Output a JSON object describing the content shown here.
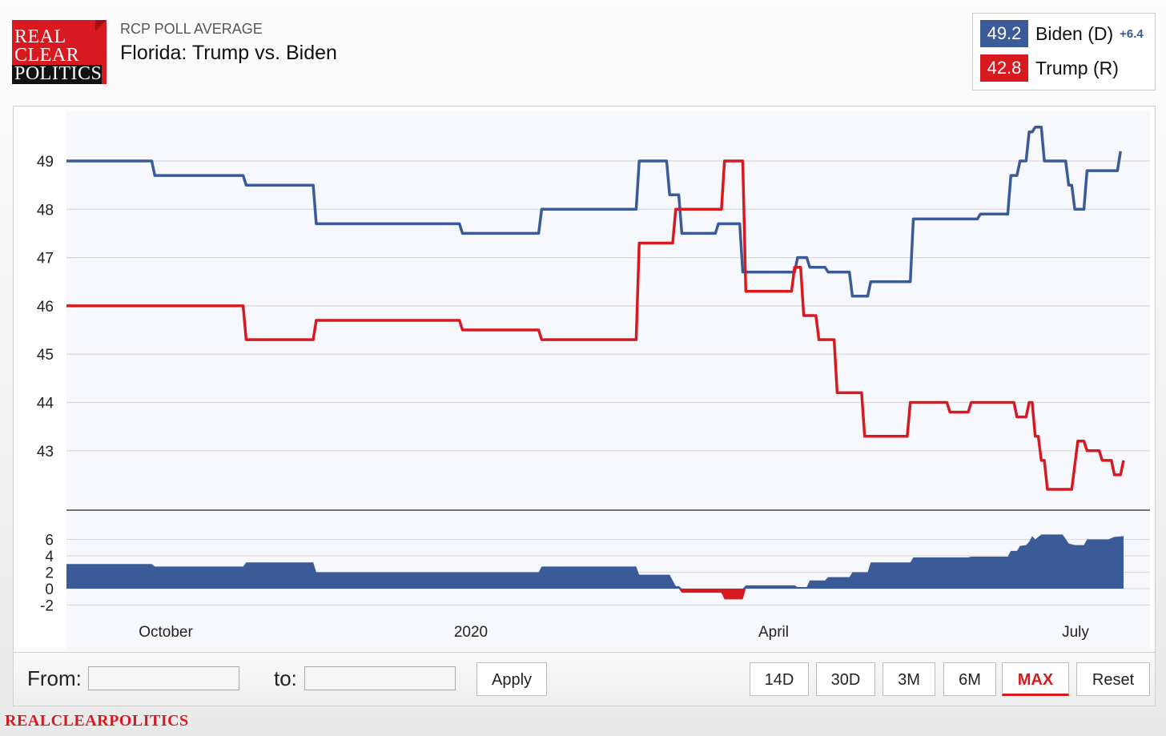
{
  "logo": {
    "line1": "REAL",
    "line2": "CLEAR",
    "line3": "POLITICS"
  },
  "header": {
    "subtitle": "RCP POLL AVERAGE",
    "title": "Florida: Trump vs. Biden"
  },
  "legend": {
    "biden": {
      "value": "49.2",
      "name": "Biden (D)",
      "spread": "+6.4",
      "color": "#3a5a98"
    },
    "trump": {
      "value": "42.8",
      "name": "Trump (R)",
      "color": "#d71920"
    }
  },
  "controls": {
    "from_label": "From:",
    "from_value": "",
    "to_label": "to:",
    "to_value": "",
    "apply_label": "Apply",
    "ranges": [
      "14D",
      "30D",
      "3M",
      "6M",
      "MAX",
      "Reset"
    ],
    "active_range": "MAX"
  },
  "footer": {
    "brand": "REALCLEARPOLITICS"
  },
  "chart_data": [
    {
      "type": "line",
      "title": "",
      "x_labels": [
        "October",
        "2020",
        "April",
        "July"
      ],
      "y_ticks": [
        43,
        44,
        45,
        46,
        47,
        48,
        49
      ],
      "ylim": [
        41.8,
        50.1
      ],
      "grid": true,
      "series": [
        {
          "name": "Biden (D)",
          "color": "#3a5a98",
          "points": [
            [
              "2019-09-01",
              49.0
            ],
            [
              "2019-09-29",
              49.0
            ],
            [
              "2019-09-30",
              48.7
            ],
            [
              "2019-10-29",
              48.7
            ],
            [
              "2019-10-30",
              48.5
            ],
            [
              "2019-11-21",
              48.5
            ],
            [
              "2019-11-22",
              47.7
            ],
            [
              "2020-01-08",
              47.7
            ],
            [
              "2020-01-09",
              47.5
            ],
            [
              "2020-02-03",
              47.5
            ],
            [
              "2020-02-04",
              48.0
            ],
            [
              "2020-03-06",
              48.0
            ],
            [
              "2020-03-07",
              49.0
            ],
            [
              "2020-03-16",
              49.0
            ],
            [
              "2020-03-17",
              48.3
            ],
            [
              "2020-03-20",
              48.3
            ],
            [
              "2020-03-21",
              47.5
            ],
            [
              "2020-04-01",
              47.5
            ],
            [
              "2020-04-02",
              47.7
            ],
            [
              "2020-04-09",
              47.7
            ],
            [
              "2020-04-10",
              46.7
            ],
            [
              "2020-04-27",
              46.7
            ],
            [
              "2020-04-28",
              47.0
            ],
            [
              "2020-05-01",
              47.0
            ],
            [
              "2020-05-02",
              46.8
            ],
            [
              "2020-05-07",
              46.8
            ],
            [
              "2020-05-08",
              46.7
            ],
            [
              "2020-05-15",
              46.7
            ],
            [
              "2020-05-16",
              46.2
            ],
            [
              "2020-05-21",
              46.2
            ],
            [
              "2020-05-22",
              46.5
            ],
            [
              "2020-06-04",
              46.5
            ],
            [
              "2020-06-05",
              47.8
            ],
            [
              "2020-06-26",
              47.8
            ],
            [
              "2020-06-27",
              47.9
            ],
            [
              "2020-07-06",
              47.9
            ],
            [
              "2020-07-07",
              48.7
            ],
            [
              "2020-07-09",
              48.7
            ],
            [
              "2020-07-10",
              49.0
            ],
            [
              "2020-07-12",
              49.0
            ],
            [
              "2020-07-13",
              49.6
            ],
            [
              "2020-07-14",
              49.6
            ],
            [
              "2020-07-15",
              49.7
            ],
            [
              "2020-07-17",
              49.7
            ],
            [
              "2020-07-18",
              49.0
            ],
            [
              "2020-07-25",
              49.0
            ],
            [
              "2020-07-26",
              48.5
            ],
            [
              "2020-07-27",
              48.5
            ],
            [
              "2020-07-28",
              48.0
            ],
            [
              "2020-07-31",
              48.0
            ],
            [
              "2020-08-01",
              48.8
            ],
            [
              "2020-08-11",
              48.8
            ],
            [
              "2020-08-12",
              49.2
            ]
          ]
        },
        {
          "name": "Trump (R)",
          "color": "#d71920",
          "points": [
            [
              "2019-09-01",
              46.0
            ],
            [
              "2019-10-29",
              46.0
            ],
            [
              "2019-10-30",
              45.3
            ],
            [
              "2019-11-21",
              45.3
            ],
            [
              "2019-11-22",
              45.7
            ],
            [
              "2020-01-08",
              45.7
            ],
            [
              "2020-01-09",
              45.5
            ],
            [
              "2020-02-03",
              45.5
            ],
            [
              "2020-02-04",
              45.3
            ],
            [
              "2020-03-06",
              45.3
            ],
            [
              "2020-03-07",
              47.3
            ],
            [
              "2020-03-18",
              47.3
            ],
            [
              "2020-03-19",
              48.0
            ],
            [
              "2020-04-03",
              48.0
            ],
            [
              "2020-04-04",
              49.0
            ],
            [
              "2020-04-10",
              49.0
            ],
            [
              "2020-04-11",
              46.3
            ],
            [
              "2020-04-26",
              46.3
            ],
            [
              "2020-04-27",
              46.8
            ],
            [
              "2020-04-29",
              46.8
            ],
            [
              "2020-04-30",
              45.8
            ],
            [
              "2020-05-04",
              45.8
            ],
            [
              "2020-05-05",
              45.3
            ],
            [
              "2020-05-10",
              45.3
            ],
            [
              "2020-05-11",
              44.2
            ],
            [
              "2020-05-19",
              44.2
            ],
            [
              "2020-05-20",
              43.3
            ],
            [
              "2020-06-03",
              43.3
            ],
            [
              "2020-06-04",
              44.0
            ],
            [
              "2020-06-16",
              44.0
            ],
            [
              "2020-06-17",
              43.8
            ],
            [
              "2020-06-23",
              43.8
            ],
            [
              "2020-06-24",
              44.0
            ],
            [
              "2020-07-08",
              44.0
            ],
            [
              "2020-07-09",
              43.7
            ],
            [
              "2020-07-12",
              43.7
            ],
            [
              "2020-07-13",
              44.0
            ],
            [
              "2020-07-14",
              44.0
            ],
            [
              "2020-07-15",
              43.3
            ],
            [
              "2020-07-16",
              43.3
            ],
            [
              "2020-07-17",
              42.8
            ],
            [
              "2020-07-18",
              42.8
            ],
            [
              "2020-07-19",
              42.2
            ],
            [
              "2020-07-27",
              42.2
            ],
            [
              "2020-07-29",
              43.2
            ],
            [
              "2020-07-31",
              43.2
            ],
            [
              "2020-08-01",
              43.0
            ],
            [
              "2020-08-05",
              43.0
            ],
            [
              "2020-08-06",
              42.8
            ],
            [
              "2020-08-09",
              42.8
            ],
            [
              "2020-08-10",
              42.5
            ],
            [
              "2020-08-12",
              42.5
            ],
            [
              "2020-08-13",
              42.8
            ]
          ]
        }
      ]
    },
    {
      "type": "area",
      "title": "",
      "y_ticks": [
        -2,
        0,
        2,
        4,
        6
      ],
      "ylim": [
        -3,
        7
      ],
      "series": [
        {
          "name": "",
          "color": "#3a5a98",
          "negative_color": "#d71920",
          "points": [
            [
              "2019-09-01",
              3.0
            ],
            [
              "2019-09-29",
              3.0
            ],
            [
              "2019-09-30",
              2.7
            ],
            [
              "2019-10-29",
              2.7
            ],
            [
              "2019-10-30",
              3.2
            ],
            [
              "2019-11-21",
              3.2
            ],
            [
              "2019-11-22",
              2.0
            ],
            [
              "2020-02-03",
              2.0
            ],
            [
              "2020-02-04",
              2.7
            ],
            [
              "2020-03-06",
              2.7
            ],
            [
              "2020-03-07",
              1.7
            ],
            [
              "2020-03-17",
              1.7
            ],
            [
              "2020-03-19",
              0.3
            ],
            [
              "2020-03-20",
              0.3
            ],
            [
              "2020-03-21",
              -0.5
            ],
            [
              "2020-04-03",
              -0.5
            ],
            [
              "2020-04-04",
              -1.3
            ],
            [
              "2020-04-10",
              -1.3
            ],
            [
              "2020-04-11",
              0.4
            ],
            [
              "2020-04-27",
              0.4
            ],
            [
              "2020-04-28",
              0.2
            ],
            [
              "2020-05-01",
              0.2
            ],
            [
              "2020-05-02",
              1.0
            ],
            [
              "2020-05-07",
              1.0
            ],
            [
              "2020-05-08",
              1.4
            ],
            [
              "2020-05-15",
              1.4
            ],
            [
              "2020-05-16",
              2.0
            ],
            [
              "2020-05-21",
              2.0
            ],
            [
              "2020-05-22",
              3.2
            ],
            [
              "2020-06-04",
              3.2
            ],
            [
              "2020-06-05",
              3.8
            ],
            [
              "2020-06-23",
              3.8
            ],
            [
              "2020-06-24",
              3.9
            ],
            [
              "2020-07-06",
              3.9
            ],
            [
              "2020-07-07",
              4.6
            ],
            [
              "2020-07-09",
              4.6
            ],
            [
              "2020-07-10",
              5.2
            ],
            [
              "2020-07-12",
              5.3
            ],
            [
              "2020-07-13",
              5.7
            ],
            [
              "2020-07-14",
              6.4
            ],
            [
              "2020-07-15",
              6.0
            ],
            [
              "2020-07-17",
              6.6
            ],
            [
              "2020-07-24",
              6.6
            ],
            [
              "2020-07-26",
              5.5
            ],
            [
              "2020-07-28",
              5.3
            ],
            [
              "2020-07-31",
              5.3
            ],
            [
              "2020-08-01",
              6.0
            ],
            [
              "2020-08-08",
              6.0
            ],
            [
              "2020-08-10",
              6.3
            ],
            [
              "2020-08-13",
              6.4
            ]
          ]
        }
      ]
    }
  ]
}
